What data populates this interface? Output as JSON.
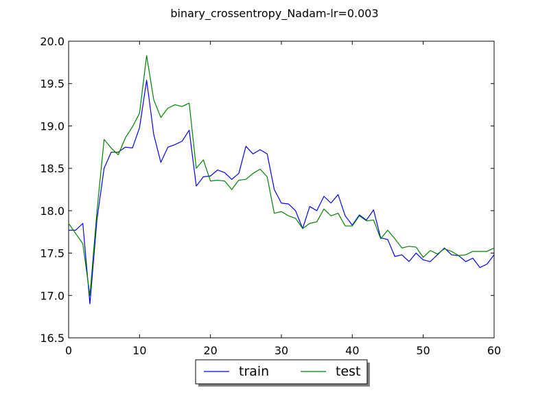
{
  "chart_data": {
    "type": "line",
    "title": "binary_crossentropy_Nadam-lr=0.003",
    "xlabel": "",
    "ylabel": "",
    "xlim": [
      0,
      60
    ],
    "ylim": [
      16.5,
      20.0
    ],
    "xticks": [
      0,
      10,
      20,
      30,
      40,
      50,
      60
    ],
    "yticks": [
      16.5,
      17.0,
      17.5,
      18.0,
      18.5,
      19.0,
      19.5,
      20.0
    ],
    "xtick_labels": [
      "0",
      "10",
      "20",
      "30",
      "40",
      "50",
      "60"
    ],
    "ytick_labels": [
      "16.5",
      "17.0",
      "17.5",
      "18.0",
      "18.5",
      "19.0",
      "19.5",
      "20.0"
    ],
    "grid": false,
    "legend_position": "bottom-center-outside",
    "series": [
      {
        "name": "train",
        "color": "#0000ff",
        "x": [
          0,
          1,
          2,
          3,
          4,
          5,
          6,
          7,
          8,
          9,
          10,
          11,
          12,
          13,
          14,
          15,
          16,
          17,
          18,
          19,
          20,
          21,
          22,
          23,
          24,
          25,
          26,
          27,
          28,
          29,
          30,
          31,
          32,
          33,
          34,
          35,
          36,
          37,
          38,
          39,
          40,
          41,
          42,
          43,
          44,
          45,
          46,
          47,
          48,
          49,
          50,
          51,
          52,
          53,
          54,
          55,
          56,
          57,
          58,
          59,
          60
        ],
        "values": [
          17.77,
          17.77,
          17.85,
          16.9,
          17.9,
          18.5,
          18.69,
          18.69,
          18.75,
          18.74,
          18.98,
          19.54,
          18.9,
          18.57,
          18.75,
          18.78,
          18.82,
          18.95,
          18.29,
          18.4,
          18.41,
          18.48,
          18.45,
          18.37,
          18.44,
          18.76,
          18.67,
          18.72,
          18.67,
          18.25,
          18.09,
          18.08,
          18.0,
          17.79,
          18.05,
          18.0,
          18.17,
          18.09,
          18.19,
          17.94,
          17.83,
          17.95,
          17.89,
          18.01,
          17.68,
          17.66,
          17.46,
          17.48,
          17.4,
          17.5,
          17.42,
          17.4,
          17.48,
          17.56,
          17.48,
          17.47,
          17.4,
          17.44,
          17.33,
          17.37,
          17.48
        ]
      },
      {
        "name": "test",
        "color": "#008000",
        "x": [
          0,
          1,
          2,
          3,
          4,
          5,
          6,
          7,
          8,
          9,
          10,
          11,
          12,
          13,
          14,
          15,
          16,
          17,
          18,
          19,
          20,
          21,
          22,
          23,
          24,
          25,
          26,
          27,
          28,
          29,
          30,
          31,
          32,
          33,
          34,
          35,
          36,
          37,
          38,
          39,
          40,
          41,
          42,
          43,
          44,
          45,
          46,
          47,
          48,
          49,
          50,
          51,
          52,
          53,
          54,
          55,
          56,
          57,
          58,
          59,
          60
        ],
        "values": [
          17.85,
          17.73,
          17.61,
          17.0,
          18.0,
          18.84,
          18.74,
          18.66,
          18.86,
          18.99,
          19.15,
          19.83,
          19.31,
          19.1,
          19.21,
          19.25,
          19.23,
          19.27,
          18.5,
          18.6,
          18.35,
          18.36,
          18.35,
          18.25,
          18.36,
          18.37,
          18.44,
          18.49,
          18.4,
          17.97,
          17.99,
          17.94,
          17.91,
          17.79,
          17.85,
          17.87,
          18.02,
          17.94,
          17.97,
          17.82,
          17.82,
          17.94,
          17.88,
          17.89,
          17.67,
          17.77,
          17.67,
          17.56,
          17.58,
          17.57,
          17.45,
          17.53,
          17.49,
          17.55,
          17.52,
          17.47,
          17.48,
          17.52,
          17.52,
          17.52,
          17.56
        ]
      }
    ]
  }
}
